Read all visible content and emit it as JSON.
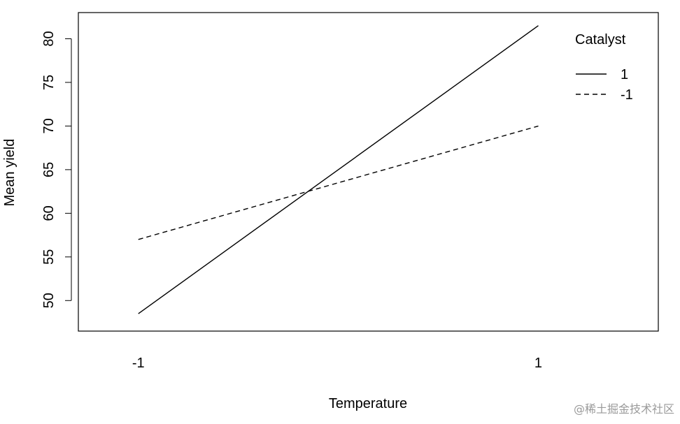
{
  "chart_data": {
    "type": "line",
    "title": "",
    "xlabel": "Temperature",
    "ylabel": "Mean yield",
    "categories": [
      "-1",
      "1"
    ],
    "x": [
      -1,
      1
    ],
    "xlim": [
      -1.3,
      1.6
    ],
    "ylim": [
      46.5,
      83.0
    ],
    "yticks": [
      50,
      55,
      60,
      65,
      70,
      75,
      80
    ],
    "legend": {
      "title": "Catalyst",
      "position": "top-right",
      "entries": [
        "1",
        "-1"
      ]
    },
    "series": [
      {
        "name": "1",
        "line_style": "solid",
        "color": "#000000",
        "values": [
          48.5,
          81.5
        ]
      },
      {
        "name": "-1",
        "line_style": "dashed",
        "color": "#000000",
        "values": [
          57.0,
          70.0
        ]
      }
    ],
    "grid": false
  },
  "watermark": "@稀土掘金技术社区"
}
